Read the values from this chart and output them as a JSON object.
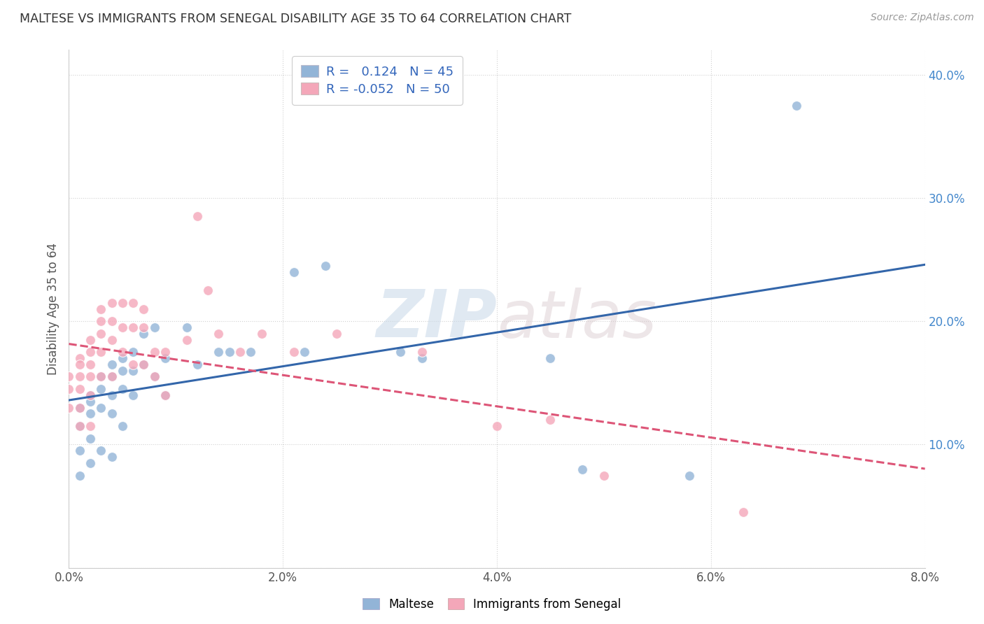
{
  "title": "MALTESE VS IMMIGRANTS FROM SENEGAL DISABILITY AGE 35 TO 64 CORRELATION CHART",
  "source": "Source: ZipAtlas.com",
  "xlabel_label": "Maltese",
  "ylabel_label": "Disability Age 35 to 64",
  "xlabel2_label": "Immigrants from Senegal",
  "xlim": [
    0.0,
    0.08
  ],
  "ylim": [
    0.0,
    0.42
  ],
  "x_ticks": [
    0.0,
    0.02,
    0.04,
    0.06,
    0.08
  ],
  "x_tick_labels": [
    "0.0%",
    "2.0%",
    "4.0%",
    "6.0%",
    "8.0%"
  ],
  "y_ticks": [
    0.0,
    0.1,
    0.2,
    0.3,
    0.4
  ],
  "y_tick_labels_right": [
    "",
    "10.0%",
    "20.0%",
    "30.0%",
    "40.0%"
  ],
  "blue_R": 0.124,
  "blue_N": 45,
  "pink_R": -0.052,
  "pink_N": 50,
  "blue_color": "#92B4D7",
  "pink_color": "#F4A7B9",
  "blue_line_color": "#3366AA",
  "pink_line_color": "#DD5577",
  "watermark": "ZIPatlas",
  "blue_points_x": [
    0.001,
    0.001,
    0.001,
    0.001,
    0.002,
    0.002,
    0.002,
    0.002,
    0.002,
    0.003,
    0.003,
    0.003,
    0.003,
    0.004,
    0.004,
    0.004,
    0.004,
    0.004,
    0.005,
    0.005,
    0.005,
    0.005,
    0.006,
    0.006,
    0.006,
    0.007,
    0.007,
    0.008,
    0.008,
    0.009,
    0.009,
    0.011,
    0.012,
    0.014,
    0.015,
    0.017,
    0.021,
    0.022,
    0.024,
    0.031,
    0.033,
    0.045,
    0.048,
    0.058,
    0.068
  ],
  "blue_points_y": [
    0.13,
    0.115,
    0.095,
    0.075,
    0.14,
    0.135,
    0.125,
    0.105,
    0.085,
    0.155,
    0.145,
    0.13,
    0.095,
    0.165,
    0.155,
    0.14,
    0.125,
    0.09,
    0.17,
    0.16,
    0.145,
    0.115,
    0.175,
    0.16,
    0.14,
    0.19,
    0.165,
    0.195,
    0.155,
    0.17,
    0.14,
    0.195,
    0.165,
    0.175,
    0.175,
    0.175,
    0.24,
    0.175,
    0.245,
    0.175,
    0.17,
    0.17,
    0.08,
    0.075,
    0.375
  ],
  "pink_points_x": [
    0.0,
    0.0,
    0.0,
    0.001,
    0.001,
    0.001,
    0.001,
    0.001,
    0.001,
    0.002,
    0.002,
    0.002,
    0.002,
    0.002,
    0.002,
    0.003,
    0.003,
    0.003,
    0.003,
    0.003,
    0.004,
    0.004,
    0.004,
    0.004,
    0.005,
    0.005,
    0.005,
    0.006,
    0.006,
    0.006,
    0.007,
    0.007,
    0.007,
    0.008,
    0.008,
    0.009,
    0.009,
    0.011,
    0.012,
    0.013,
    0.014,
    0.016,
    0.018,
    0.021,
    0.025,
    0.033,
    0.04,
    0.045,
    0.05,
    0.063
  ],
  "pink_points_y": [
    0.155,
    0.145,
    0.13,
    0.17,
    0.165,
    0.155,
    0.145,
    0.13,
    0.115,
    0.185,
    0.175,
    0.165,
    0.155,
    0.14,
    0.115,
    0.21,
    0.2,
    0.19,
    0.175,
    0.155,
    0.215,
    0.2,
    0.185,
    0.155,
    0.215,
    0.195,
    0.175,
    0.215,
    0.195,
    0.165,
    0.21,
    0.195,
    0.165,
    0.175,
    0.155,
    0.175,
    0.14,
    0.185,
    0.285,
    0.225,
    0.19,
    0.175,
    0.19,
    0.175,
    0.19,
    0.175,
    0.115,
    0.12,
    0.075,
    0.045
  ]
}
